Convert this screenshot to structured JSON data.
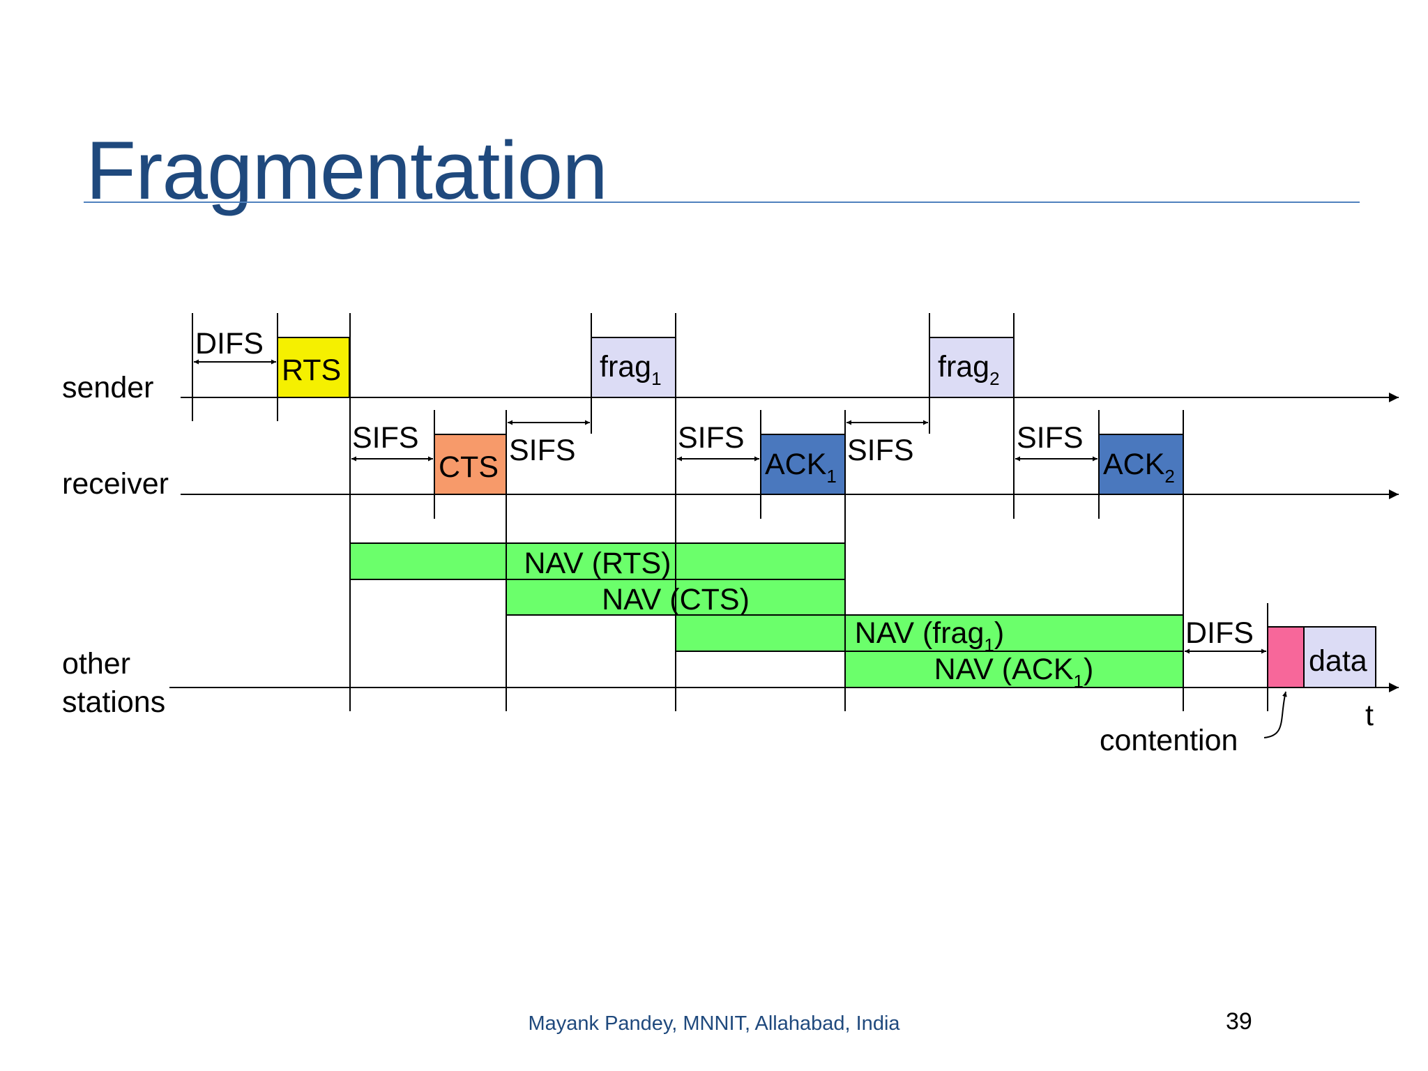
{
  "slide": {
    "title": "Fragmentation",
    "footer": "Mayank Pandey, MNNIT, Allahabad, India",
    "page_number": "39"
  },
  "diagram": {
    "rows": {
      "sender": "sender",
      "receiver": "receiver",
      "other_line1": "other",
      "other_line2": "stations"
    },
    "time_label": "t",
    "contention_label": "contention",
    "intervals": {
      "difs_1": "DIFS",
      "sifs_1": "SIFS",
      "sifs_2": "SIFS",
      "sifs_3": "SIFS",
      "sifs_4": "SIFS",
      "sifs_5": "SIFS",
      "difs_2": "DIFS"
    },
    "frames": {
      "rts": {
        "label": "RTS",
        "color": "#F5F000"
      },
      "cts": {
        "label": "CTS",
        "color": "#F79A6A"
      },
      "frag1": {
        "label": "frag",
        "sub": "1",
        "color": "#DCDCF5"
      },
      "ack1": {
        "label": "ACK",
        "sub": "1",
        "color": "#4A78BE"
      },
      "frag2": {
        "label": "frag",
        "sub": "2",
        "color": "#DCDCF5"
      },
      "ack2": {
        "label": "ACK",
        "sub": "2",
        "color": "#4A78BE"
      },
      "contention_slot": {
        "color": "#F7679A"
      },
      "data": {
        "label": "data",
        "color": "#DCDCF5"
      }
    },
    "nav": {
      "color": "#6BFF6B",
      "rts": {
        "label": "NAV (RTS)"
      },
      "cts": {
        "label": "NAV (CTS)"
      },
      "frag1": {
        "prefix": "NAV (frag",
        "sub": "1",
        "suffix": ")"
      },
      "ack1": {
        "prefix": "NAV (ACK",
        "sub": "1",
        "suffix": ")"
      }
    }
  }
}
